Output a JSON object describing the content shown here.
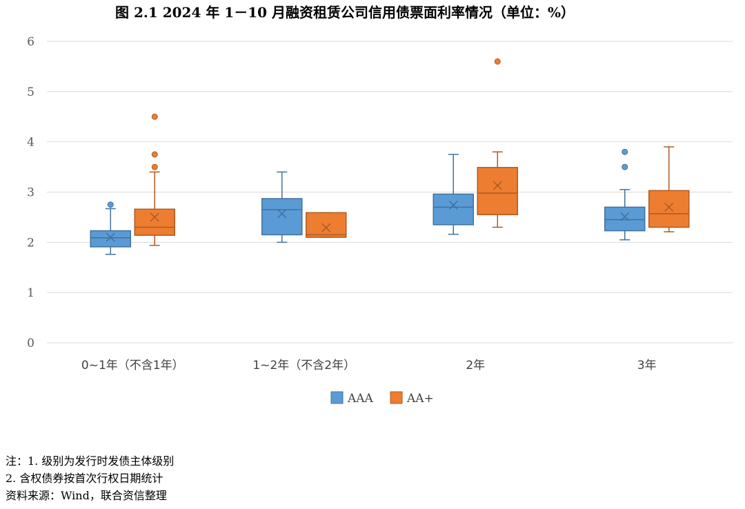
{
  "title": "图 2.1  2024 年 1－10 月融资租赁公司信用债票面利率情况（单位：%）",
  "chart_data": {
    "type": "box",
    "title": "图 2.1  2024 年 1－10 月融资租赁公司信用债票面利率情况（单位：%）",
    "xlabel": "",
    "ylabel": "",
    "ylim": [
      0,
      6
    ],
    "yticks": [
      0,
      1,
      2,
      3,
      4,
      5,
      6
    ],
    "grid": true,
    "legend_position": "bottom-center",
    "categories": [
      "0~1年（不含1年）",
      "1~2年（不含2年）",
      "2年",
      "3年"
    ],
    "series": [
      {
        "name": "AAA",
        "color": "#5B9BD5",
        "edge": "#41719C",
        "boxes": [
          {
            "min": 1.76,
            "q1": 1.91,
            "median": 2.09,
            "q3": 2.23,
            "max": 2.67,
            "mean": 2.1,
            "outliers": [
              2.75
            ]
          },
          {
            "min": 2.0,
            "q1": 2.15,
            "median": 2.65,
            "q3": 2.87,
            "max": 3.4,
            "mean": 2.57,
            "outliers": []
          },
          {
            "min": 2.16,
            "q1": 2.35,
            "median": 2.7,
            "q3": 2.96,
            "max": 3.75,
            "mean": 2.74,
            "outliers": []
          },
          {
            "min": 2.05,
            "q1": 2.23,
            "median": 2.45,
            "q3": 2.7,
            "max": 3.05,
            "mean": 2.51,
            "outliers": [
              3.5,
              3.8
            ]
          }
        ]
      },
      {
        "name": "AA+",
        "color": "#ED7D31",
        "edge": "#AE5A21",
        "boxes": [
          {
            "min": 1.94,
            "q1": 2.14,
            "median": 2.3,
            "q3": 2.66,
            "max": 3.4,
            "mean": 2.5,
            "outliers": [
              3.5,
              3.75,
              4.5
            ]
          },
          {
            "min": 2.1,
            "q1": 2.1,
            "median": 2.15,
            "q3": 2.59,
            "max": 2.59,
            "mean": 2.29,
            "outliers": []
          },
          {
            "min": 2.3,
            "q1": 2.55,
            "median": 2.98,
            "q3": 3.49,
            "max": 3.8,
            "mean": 3.13,
            "outliers": [
              5.6
            ]
          },
          {
            "min": 2.21,
            "q1": 2.3,
            "median": 2.57,
            "q3": 3.03,
            "max": 3.9,
            "mean": 2.7,
            "outliers": []
          }
        ]
      }
    ]
  },
  "notes": [
    "注：1. 级别为发行时发债主体级别",
    "2. 含权债券按首次行权日期统计",
    "资料来源：Wind，联合资信整理"
  ]
}
